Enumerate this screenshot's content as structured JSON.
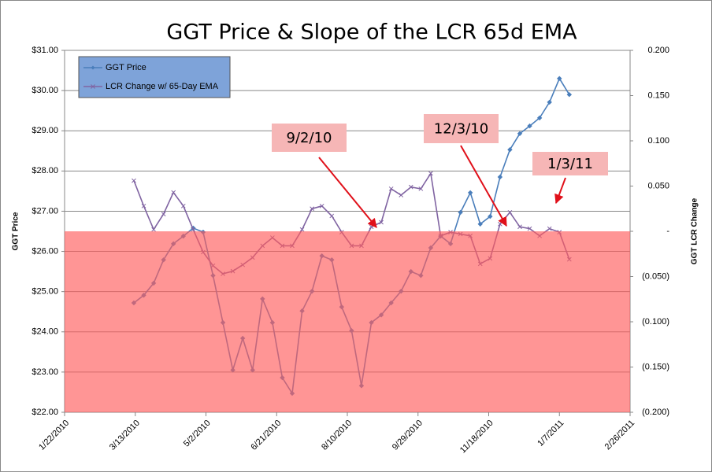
{
  "chart_data": {
    "type": "line",
    "title": "GGT Price & Slope of the LCR 65d EMA",
    "y_label": "GGT Price",
    "y2_label": "GGT LCR Change",
    "x": [
      "2010-03-12",
      "2010-03-19",
      "2010-03-26",
      "2010-04-02",
      "2010-04-09",
      "2010-04-16",
      "2010-04-23",
      "2010-04-30",
      "2010-05-07",
      "2010-05-14",
      "2010-05-21",
      "2010-05-28",
      "2010-06-04",
      "2010-06-11",
      "2010-06-18",
      "2010-06-25",
      "2010-07-02",
      "2010-07-09",
      "2010-07-16",
      "2010-07-23",
      "2010-07-30",
      "2010-08-06",
      "2010-08-13",
      "2010-08-20",
      "2010-08-27",
      "2010-09-03",
      "2010-09-10",
      "2010-09-17",
      "2010-09-24",
      "2010-10-01",
      "2010-10-08",
      "2010-10-15",
      "2010-10-22",
      "2010-10-29",
      "2010-11-05",
      "2010-11-12",
      "2010-11-19",
      "2010-11-26",
      "2010-12-03",
      "2010-12-10",
      "2010-12-17",
      "2010-12-24",
      "2010-12-31",
      "2011-01-07",
      "2011-01-14"
    ],
    "series": [
      {
        "name": "GGT Price",
        "color": "#4a7ebb",
        "marker": "diamond",
        "axis": "y",
        "values": [
          24.72,
          24.91,
          25.21,
          25.79,
          26.19,
          26.38,
          26.58,
          26.48,
          25.4,
          24.23,
          23.05,
          23.84,
          23.05,
          24.82,
          24.23,
          22.86,
          22.47,
          24.52,
          25.01,
          25.89,
          25.79,
          24.62,
          24.03,
          22.66,
          24.23,
          24.42,
          24.72,
          25.01,
          25.5,
          25.4,
          26.09,
          26.38,
          26.19,
          26.97,
          27.46,
          26.68,
          26.87,
          27.85,
          28.53,
          28.93,
          29.12,
          29.32,
          29.71,
          30.3,
          29.9
        ]
      },
      {
        "name": "LCR Change w/ 65-Day EMA",
        "color": "#8064a2",
        "marker": "x",
        "axis": "y2",
        "values": [
          0.056,
          0.028,
          0.002,
          0.019,
          0.043,
          0.028,
          0.002,
          -0.023,
          -0.038,
          -0.047,
          -0.044,
          -0.037,
          -0.029,
          -0.016,
          -0.007,
          -0.016,
          -0.016,
          0.002,
          0.025,
          0.028,
          0.017,
          -0.001,
          -0.016,
          -0.016,
          0.005,
          0.01,
          0.047,
          0.04,
          0.049,
          0.047,
          0.064,
          -0.005,
          -0.001,
          -0.003,
          -0.005,
          -0.036,
          -0.03,
          0.008,
          0.021,
          0.005,
          0.003,
          -0.005,
          0.003,
          -0.001,
          -0.031
        ]
      }
    ],
    "xlim": [
      "2010-01-22",
      "2011-02-26"
    ],
    "xticks": [
      {
        "value": "2010-01-22",
        "label": "1/22/2010"
      },
      {
        "value": "2010-03-13",
        "label": "3/13/2010"
      },
      {
        "value": "2010-05-02",
        "label": "5/2/2010"
      },
      {
        "value": "2010-06-21",
        "label": "6/21/2010"
      },
      {
        "value": "2010-08-10",
        "label": "8/10/2010"
      },
      {
        "value": "2010-09-29",
        "label": "9/29/2010"
      },
      {
        "value": "2010-11-18",
        "label": "11/18/2010"
      },
      {
        "value": "2011-01-07",
        "label": "1/7/2011"
      },
      {
        "value": "2011-02-26",
        "label": "2/26/2011"
      }
    ],
    "ylim": [
      22,
      31
    ],
    "yticks": [
      {
        "value": 22,
        "label": "$22.00"
      },
      {
        "value": 23,
        "label": "$23.00"
      },
      {
        "value": 24,
        "label": "$24.00"
      },
      {
        "value": 25,
        "label": "$25.00"
      },
      {
        "value": 26,
        "label": "$26.00"
      },
      {
        "value": 27,
        "label": "$27.00"
      },
      {
        "value": 28,
        "label": "$28.00"
      },
      {
        "value": 29,
        "label": "$29.00"
      },
      {
        "value": 30,
        "label": "$30.00"
      },
      {
        "value": 31,
        "label": "$31.00"
      }
    ],
    "y2lim": [
      -0.2,
      0.2
    ],
    "y2ticks": [
      {
        "value": -0.2,
        "label": "(0.200)"
      },
      {
        "value": -0.15,
        "label": "(0.150)"
      },
      {
        "value": -0.1,
        "label": "(0.100)"
      },
      {
        "value": -0.05,
        "label": "(0.050)"
      },
      {
        "value": 0,
        "label": "-"
      },
      {
        "value": 0.05,
        "label": "0.050"
      },
      {
        "value": 0.1,
        "label": "0.100"
      },
      {
        "value": 0.15,
        "label": "0.150"
      },
      {
        "value": 0.2,
        "label": "0.200"
      }
    ],
    "grid": true,
    "legend": "upper left",
    "shaded_region": {
      "y2": [
        -0.2,
        0
      ],
      "color": "#ff5c5c"
    },
    "annotations": [
      {
        "text": "9/2/10"
      },
      {
        "text": "12/3/10"
      },
      {
        "text": "1/3/11"
      }
    ]
  }
}
